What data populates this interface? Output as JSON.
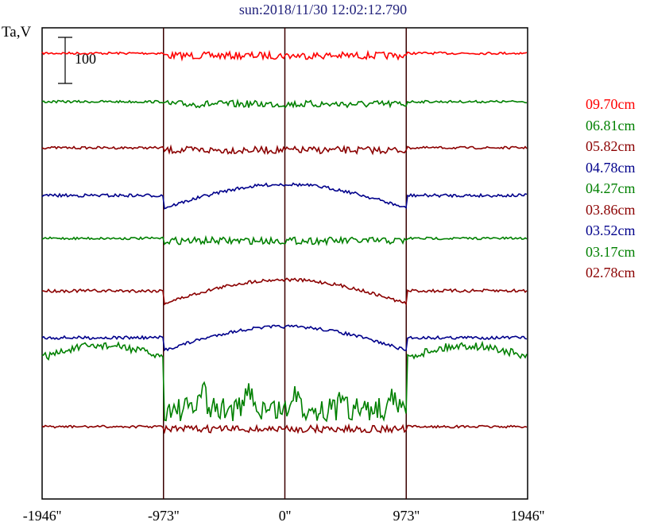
{
  "chart_data": {
    "type": "line",
    "title": "sun:2018/11/30 12:02:12.790",
    "ylabel": "Ta,V",
    "scale_bar_label": "100",
    "x_ticks": [
      "-1946''",
      "-973''",
      "0''",
      "973''",
      "1946''"
    ],
    "x_tick_values": [
      -1946,
      -973,
      0,
      973,
      1946
    ],
    "xlim": [
      -1946,
      1946
    ],
    "vertical_markers": [
      -973,
      0,
      973
    ],
    "legend": [
      {
        "label": "09.70cm",
        "color": "#ff0000"
      },
      {
        "label": "06.81cm",
        "color": "#008000"
      },
      {
        "label": "05.82cm",
        "color": "#8b0000"
      },
      {
        "label": "04.78cm",
        "color": "#00008b"
      },
      {
        "label": "04.27cm",
        "color": "#008000"
      },
      {
        "label": "03.86cm",
        "color": "#8b0000"
      },
      {
        "label": "03.52cm",
        "color": "#00008b"
      },
      {
        "label": "03.17cm",
        "color": "#008000"
      },
      {
        "label": "02.78cm",
        "color": "#8b0000"
      }
    ],
    "series": [
      {
        "name": "09.70cm",
        "color": "#ff0000",
        "shape": "flat"
      },
      {
        "name": "06.81cm",
        "color": "#008000",
        "shape": "flat"
      },
      {
        "name": "05.82cm",
        "color": "#8b0000",
        "shape": "flat"
      },
      {
        "name": "04.78cm",
        "color": "#00008b",
        "shape": "dome"
      },
      {
        "name": "04.27cm",
        "color": "#008000",
        "shape": "flat"
      },
      {
        "name": "03.86cm",
        "color": "#8b0000",
        "shape": "dome"
      },
      {
        "name": "03.52cm",
        "color": "#00008b",
        "shape": "dome"
      },
      {
        "name": "03.17cm",
        "color": "#008000",
        "shape": "wild"
      },
      {
        "name": "02.78cm",
        "color": "#8b0000",
        "shape": "flat"
      }
    ]
  }
}
